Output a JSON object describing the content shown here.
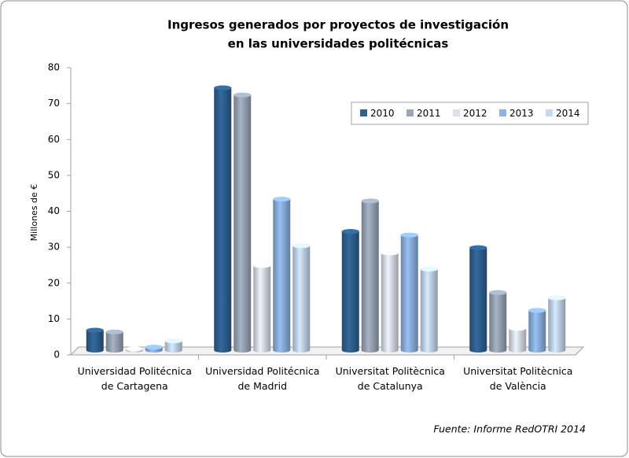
{
  "chart_data": {
    "type": "bar",
    "title": [
      "Ingresos generados por proyectos de investigación",
      "en las universidades politécnicas"
    ],
    "y_label": "Millones de €",
    "source": "Fuente: Informe RedOTRI 2014",
    "categories": [
      "Universidad Politécnica de Cartagena",
      "Universidad Politécnica de Madrid",
      "Universitat Politècnica de Catalunya",
      "Universitat Politècnica de València"
    ],
    "series": [
      {
        "name": "2010",
        "color": "#2f6192",
        "values": [
          6,
          73.5,
          33.5,
          29
        ]
      },
      {
        "name": "2011",
        "color": "#9aa7b8",
        "values": [
          5.5,
          71.5,
          42,
          16.5
        ]
      },
      {
        "name": "2012",
        "color": "#dce2ec",
        "values": [
          0.8,
          24,
          27.5,
          6.5
        ]
      },
      {
        "name": "2013",
        "color": "#8db3e2",
        "values": [
          1.3,
          42.5,
          32.5,
          11.5
        ]
      },
      {
        "name": "2014",
        "color": "#c6d9f1",
        "values": [
          3,
          29.5,
          23,
          15
        ]
      }
    ],
    "ylim": [
      0,
      80
    ],
    "yticks": [
      0,
      10,
      20,
      30,
      40,
      50,
      60,
      70,
      80
    ],
    "legend": "upper-right"
  }
}
